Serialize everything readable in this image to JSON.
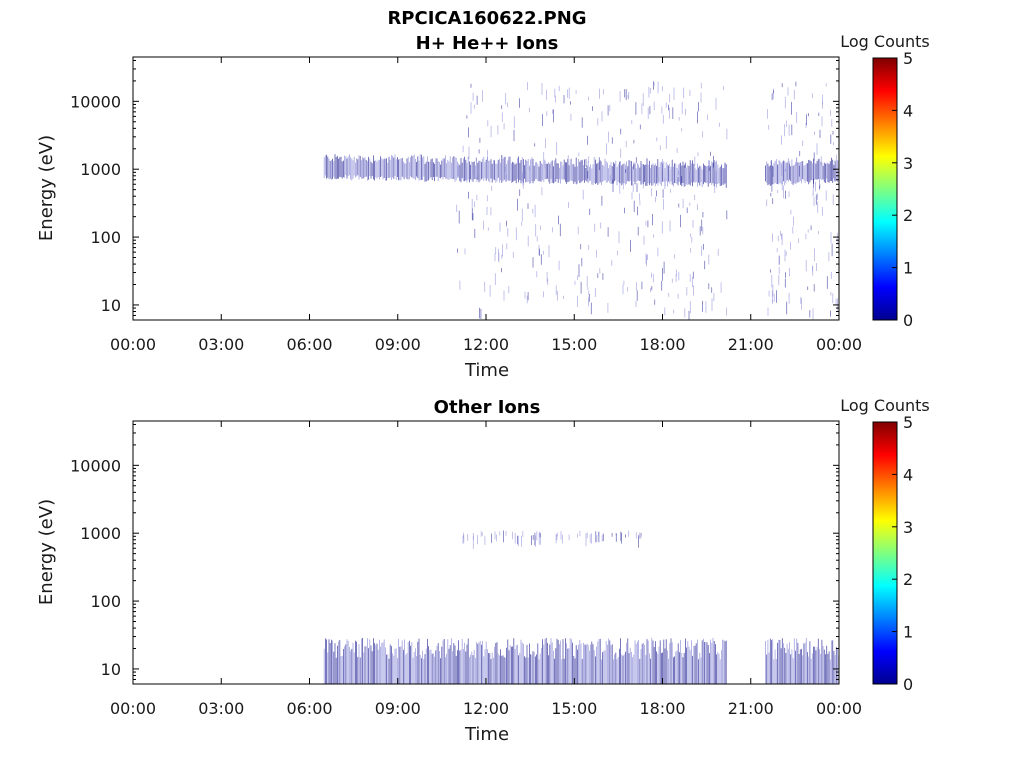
{
  "figure": {
    "title": "RPCICA160622.PNG"
  },
  "chart_data": [
    {
      "type": "heatmap",
      "title": "H+ He++ Ions",
      "xlabel": "Time",
      "ylabel": "Energy (eV)",
      "x_ticks": [
        "00:00",
        "03:00",
        "06:00",
        "09:00",
        "12:00",
        "15:00",
        "18:00",
        "21:00",
        "00:00"
      ],
      "x_range_hours": [
        0,
        24
      ],
      "y_ticks": [
        "10",
        "100",
        "1000",
        "10000"
      ],
      "y_scale": "log",
      "y_range": [
        6,
        45000
      ],
      "colorbar": {
        "label": "Log Counts",
        "ticks": [
          "0",
          "1",
          "2",
          "3",
          "4",
          "5"
        ],
        "range": [
          0,
          5
        ]
      },
      "data_gap_hours": [
        20.2,
        21.5
      ],
      "bands": [
        {
          "t_start": 6.5,
          "t_end": 20.2,
          "energy_center_start": 1050,
          "energy_center_end": 800,
          "log_counts": 1.0
        },
        {
          "t_start": 21.5,
          "t_end": 24.0,
          "energy_center_start": 850,
          "energy_center_end": 950,
          "log_counts": 1.0
        }
      ],
      "scatter_region": {
        "t_start": 11.0,
        "t_end": 24.0,
        "energy_min": 8,
        "energy_max": 20000,
        "log_counts": 0.7
      }
    },
    {
      "type": "heatmap",
      "title": "Other Ions",
      "xlabel": "Time",
      "ylabel": "Energy (eV)",
      "x_ticks": [
        "00:00",
        "03:00",
        "06:00",
        "09:00",
        "12:00",
        "15:00",
        "18:00",
        "21:00",
        "00:00"
      ],
      "x_range_hours": [
        0,
        24
      ],
      "y_ticks": [
        "10",
        "100",
        "1000",
        "10000"
      ],
      "y_scale": "log",
      "y_range": [
        6,
        45000
      ],
      "colorbar": {
        "label": "Log Counts",
        "ticks": [
          "0",
          "1",
          "2",
          "3",
          "4",
          "5"
        ],
        "range": [
          0,
          5
        ]
      },
      "data_gap_hours": [
        20.2,
        21.5
      ],
      "bands": [
        {
          "t_start": 6.5,
          "t_end": 20.2,
          "energy_min": 6,
          "energy_max": 25,
          "log_counts": 1.0
        },
        {
          "t_start": 21.5,
          "t_end": 24.0,
          "energy_min": 6,
          "energy_max": 25,
          "log_counts": 1.0
        }
      ],
      "scatter_region": {
        "t_start": 11.0,
        "t_end": 17.5,
        "energy_min": 900,
        "energy_max": 1100,
        "log_counts": 0.7
      }
    }
  ],
  "colors": {
    "signal_dark": "#2a2a9a",
    "signal_light": "#8c8cd8",
    "colormap": [
      "#00008f",
      "#0000ff",
      "#0080ff",
      "#00ffff",
      "#80ff80",
      "#ffff00",
      "#ff8000",
      "#ff0000",
      "#800000"
    ]
  }
}
